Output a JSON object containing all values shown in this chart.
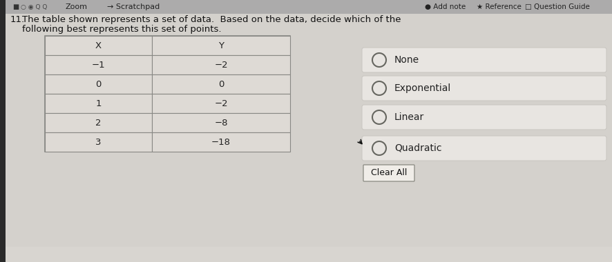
{
  "bg_color": "#c8c5c0",
  "page_color": "#e8e6e2",
  "toolbar_bg": "#b8b5b0",
  "question_number": "11.",
  "question_line1": "The table shown represents a set of data.  Based on the data, decide which of the",
  "question_line2": "following best represents this set of points.",
  "table_headers": [
    "X",
    "Y"
  ],
  "table_data": [
    [
      "−1",
      "−2"
    ],
    [
      "0",
      "0"
    ],
    [
      "1",
      "−2"
    ],
    [
      "2",
      "−8"
    ],
    [
      "3",
      "−18"
    ]
  ],
  "options": [
    "None",
    "Exponential",
    "Linear",
    "Quadratic"
  ],
  "clear_button": "Clear All",
  "font_size_question": 9.5,
  "font_size_table": 9.5,
  "font_size_options": 10
}
